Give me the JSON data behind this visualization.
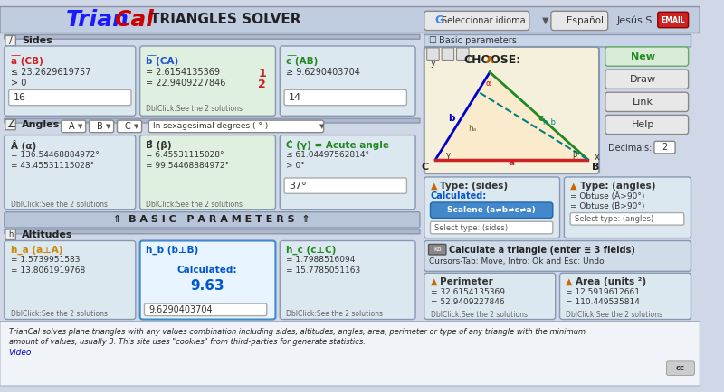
{
  "title_triancal": "TrianCal",
  "title_sub": "TRIANGLES SOLVER",
  "bg_color": "#d0d8e8",
  "header_bg": "#c8d0e0",
  "panel_bg": "#e8eef8",
  "green_panel_bg": "#e0f0e0",
  "blue_highlight": "#4080c0",
  "section_sides_label": "Sides",
  "section_angles_label": "Angles",
  "section_altitudes_label": "Altitudes",
  "basic_params_label": "⇑  B A S I C   P A R A M E T E R S  ⇑",
  "a_cb_label": "a (CB)",
  "b_ca_label": "b (CA)",
  "c_ab_label": "c (AB)",
  "a_val1": "≤ 23.2629619757",
  "a_val2": "> 0",
  "a_input": "16",
  "b_val1": "= 2.6154135369",
  "b_val2": "= 22.9409227846",
  "b_num1": "1",
  "b_num2": "2",
  "b_dbl": "DblClick:See the 2 solutions",
  "c_val1": "≥ 9.6290403704",
  "c_input": "14",
  "angle_a_label": "Â (α)",
  "angle_b_label": "B̂ (β)",
  "angle_c_label": "Ĉ (γ) = Acute angle",
  "angle_a_val1": "= 136.54468884972°",
  "angle_a_val2": "= 43.45531115028°",
  "angle_b_val1": "= 6.45531115028°",
  "angle_b_val2": "= 99.54468884972°",
  "angle_c_val1": "≤ 61.04497562814°",
  "angle_c_val2": "> 0°",
  "angle_c_input": "37°",
  "dbl_click": "DblClick:See the 2 solutions",
  "ha_label": "h_a (a⊥A)",
  "hb_label": "h_b (b⊥B)",
  "hc_label": "h_c (c⊥C)",
  "ha_val1": "= 1.5739951583",
  "ha_val2": "= 13.8061919768",
  "hb_calc": "Calculated:",
  "hb_val": "9.63",
  "hb_input": "9.6290403704",
  "hc_val1": "= 1.7988516094",
  "hc_val2": "= 15.7785051163",
  "perimeter_label": "Perimeter",
  "area_label": "Area (units ²)",
  "perim_val1": "= 32.6154135369",
  "perim_val2": "= 52.9409227846",
  "area_val1": "= 12.5919612661",
  "area_val2": "= 110.449535814",
  "type_sides_label": "Type: (sides)",
  "type_angles_label": "Type: (angles)",
  "scalene_label": "Scalene (a≠b≠c≠a)",
  "obtuse_a_label": "= Obtuse (Â>90°)",
  "obtuse_b_label": "= Obtuse (B̂>90°)",
  "calc_triangle_label": "Calculate a triangle (enter ≅ 3 fields)",
  "cursors_label": "Cursors-Tab: Move, Intro: Ok and Esc: Undo",
  "choose_label": "CHOOSE:",
  "basic_params_check": "Basic parameters",
  "seleccionar_label": "Seleccionar idioma",
  "espanol_label": "Español",
  "jesus_label": "Jesús S.",
  "new_btn": "New",
  "draw_btn": "Draw",
  "link_btn": "Link",
  "help_btn": "Help",
  "decimals_label": "Decimals:",
  "decimals_val": "2",
  "in_sexagesimal": "In sexagesimal degrees ( ° )",
  "footer_text": "TrianCal solves plane triangles with any values combination including sides, altitudes, angles, area, perimeter or type of any triangle with the minimum\namount of values, usually 3. This site uses \"cookies\" from third-parties for generate statistics.",
  "video_link": "Video",
  "calculated_label": "Calculated:",
  "select_sides": "Select type: (sides)",
  "select_angles": "Select type: (angles)"
}
